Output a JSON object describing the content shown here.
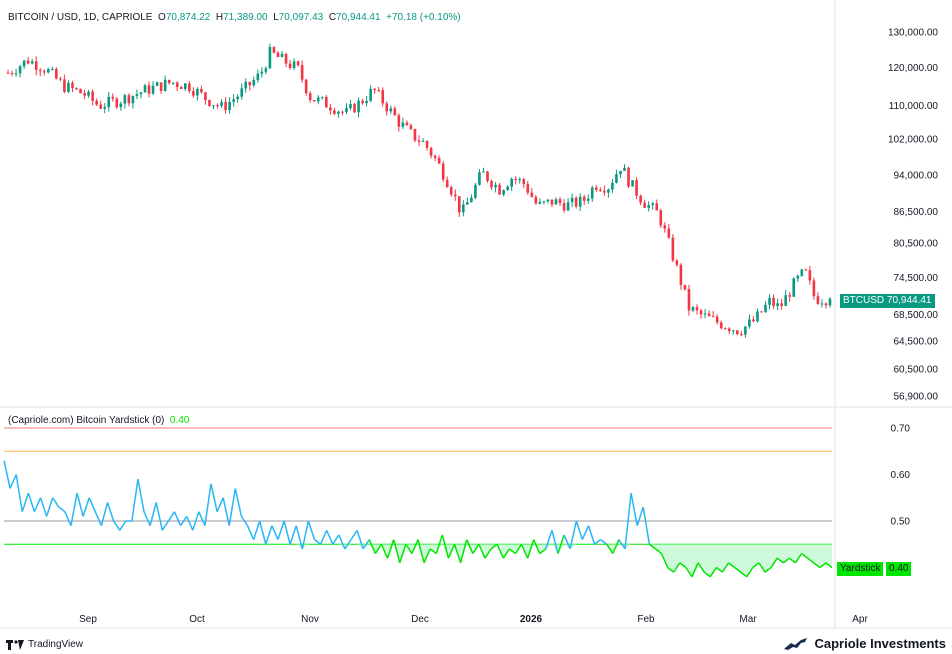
{
  "header": {
    "symbol": "BITCOIN / USD, 1D, CAPRIOLE",
    "open_label": "O",
    "open": "70,874.22",
    "high_label": "H",
    "high": "71,389.00",
    "low_label": "L",
    "low": "70,097.43",
    "close_label": "C",
    "close": "70,944.41",
    "change": "+70.18 (+0.10%)"
  },
  "indicator": {
    "title": "(Capriole.com) Bitcoin Yardstick (0)",
    "value": "0.40",
    "tag_label": "Yardstick",
    "tag_value": "0.40"
  },
  "price_tag": {
    "label": "BTCUSD",
    "value": "70,944.41"
  },
  "footer": {
    "brand": "TradingView",
    "publisher": "Capriole Investments"
  },
  "colors": {
    "up": "#089981",
    "down": "#f23645",
    "line": "#29b6f6",
    "green_line": "#00e600",
    "grid": "#f0f3fa"
  },
  "chart_data": [
    {
      "type": "candlestick",
      "scale": "log",
      "price_ticks": [
        130000,
        120000,
        110000,
        102000,
        94000,
        86500,
        80500,
        74500,
        68500,
        64500,
        60500,
        56900
      ],
      "price_tick_labels": [
        "130,000.00",
        "120,000.00",
        "110,000.00",
        "102,000.00",
        "94,000.00",
        "86,500.00",
        "80,500.00",
        "74,500.00",
        "68,500.00",
        "64,500.00",
        "60,500.00",
        "56,900.00"
      ],
      "x_ticks": [
        "Sep",
        "Oct",
        "Nov",
        "Dec",
        "2026",
        "Feb",
        "Mar",
        "Apr"
      ],
      "close_path": [
        [
          0,
          118500
        ],
        [
          8,
          122000
        ],
        [
          15,
          119500
        ],
        [
          22,
          115000
        ],
        [
          30,
          113000
        ],
        [
          36,
          110000
        ],
        [
          45,
          111500
        ],
        [
          55,
          114000
        ],
        [
          65,
          116000
        ],
        [
          72,
          115000
        ],
        [
          78,
          112000
        ],
        [
          85,
          109500
        ],
        [
          92,
          113000
        ],
        [
          100,
          118000
        ],
        [
          104,
          124000
        ],
        [
          110,
          121500
        ],
        [
          115,
          119500
        ],
        [
          120,
          112000
        ],
        [
          128,
          110000
        ],
        [
          134,
          108000
        ],
        [
          140,
          111000
        ],
        [
          145,
          114000
        ],
        [
          150,
          110000
        ],
        [
          155,
          106000
        ],
        [
          160,
          103000
        ],
        [
          165,
          101000
        ],
        [
          170,
          97000
        ],
        [
          175,
          92000
        ],
        [
          180,
          86000
        ],
        [
          184,
          90000
        ],
        [
          188,
          94500
        ],
        [
          195,
          91000
        ],
        [
          200,
          93500
        ],
        [
          205,
          92000
        ],
        [
          210,
          87500
        ],
        [
          216,
          88500
        ],
        [
          222,
          87800
        ],
        [
          228,
          88500
        ],
        [
          233,
          92000
        ],
        [
          238,
          91500
        ],
        [
          243,
          96000
        ],
        [
          247,
          92000
        ],
        [
          252,
          88500
        ],
        [
          258,
          86000
        ],
        [
          262,
          80500
        ],
        [
          266,
          75000
        ],
        [
          270,
          69500
        ],
        [
          274,
          68500
        ],
        [
          280,
          67500
        ],
        [
          290,
          66000
        ],
        [
          296,
          67500
        ],
        [
          302,
          70500
        ],
        [
          306,
          69500
        ],
        [
          312,
          73500
        ],
        [
          316,
          75500
        ],
        [
          320,
          71000
        ],
        [
          326,
          70944
        ]
      ],
      "notable_points": {
        "high": 124500,
        "low": 60500,
        "last_close": 70944.41
      }
    },
    {
      "type": "line",
      "title": "(Capriole.com) Bitcoin Yardstick (0)",
      "y_ticks": [
        0.7,
        0.6,
        0.5
      ],
      "y_tick_labels": [
        "0.70",
        "0.60",
        "0.50"
      ],
      "reference_lines": [
        {
          "value": 0.7,
          "color": "#f77c80"
        },
        {
          "value": 0.65,
          "color": "#ffb74d"
        },
        {
          "value": 0.5,
          "color": "#9598a1"
        },
        {
          "value": 0.45,
          "color": "#00e600"
        }
      ],
      "values": [
        0.63,
        0.57,
        0.6,
        0.52,
        0.56,
        0.52,
        0.55,
        0.51,
        0.55,
        0.53,
        0.52,
        0.49,
        0.56,
        0.51,
        0.55,
        0.52,
        0.49,
        0.54,
        0.5,
        0.48,
        0.5,
        0.5,
        0.59,
        0.52,
        0.49,
        0.54,
        0.48,
        0.5,
        0.52,
        0.49,
        0.51,
        0.48,
        0.52,
        0.49,
        0.58,
        0.52,
        0.55,
        0.49,
        0.57,
        0.51,
        0.49,
        0.46,
        0.5,
        0.45,
        0.49,
        0.46,
        0.5,
        0.45,
        0.49,
        0.44,
        0.5,
        0.46,
        0.45,
        0.48,
        0.45,
        0.47,
        0.44,
        0.46,
        0.48,
        0.44,
        0.46,
        0.43,
        0.45,
        0.42,
        0.46,
        0.41,
        0.45,
        0.43,
        0.46,
        0.41,
        0.44,
        0.43,
        0.47,
        0.42,
        0.45,
        0.41,
        0.46,
        0.43,
        0.45,
        0.42,
        0.44,
        0.45,
        0.42,
        0.44,
        0.43,
        0.45,
        0.42,
        0.46,
        0.43,
        0.44,
        0.48,
        0.43,
        0.47,
        0.44,
        0.5,
        0.46,
        0.49,
        0.45,
        0.46,
        0.45,
        0.43,
        0.46,
        0.44,
        0.56,
        0.49,
        0.53,
        0.45,
        0.44,
        0.43,
        0.4,
        0.39,
        0.41,
        0.4,
        0.38,
        0.41,
        0.39,
        0.38,
        0.4,
        0.39,
        0.41,
        0.4,
        0.39,
        0.38,
        0.4,
        0.41,
        0.39,
        0.4,
        0.42,
        0.41,
        0.42,
        0.41,
        0.43,
        0.42,
        0.41,
        0.4,
        0.41,
        0.4
      ],
      "last_value": 0.4
    }
  ]
}
